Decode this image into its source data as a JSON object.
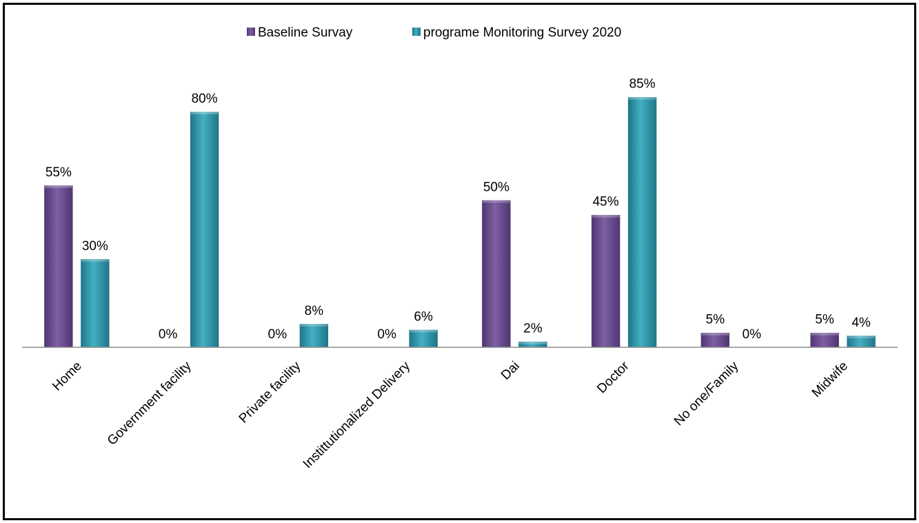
{
  "chart_data": {
    "type": "bar",
    "categories": [
      "Home",
      "Government facility",
      "Private facility",
      "Instittutionalized Delivery",
      "Dai",
      "Doctor",
      "No one/Family",
      "Midwife"
    ],
    "series": [
      {
        "name": "Baseline Survay",
        "values": [
          55,
          0,
          0,
          0,
          50,
          45,
          5,
          5
        ],
        "labels": [
          "55%",
          "0%",
          "0%",
          "0%",
          "50%",
          "45%",
          "5%",
          "5%"
        ],
        "color": "#6B4C8F"
      },
      {
        "name": "programe Monitoring Survey 2020",
        "values": [
          30,
          80,
          8,
          6,
          2,
          85,
          0,
          4
        ],
        "labels": [
          "30%",
          "80%",
          "8%",
          "6%",
          "2%",
          "85%",
          "0%",
          "4%"
        ],
        "color": "#2E94A8"
      }
    ],
    "ylim": [
      0,
      100
    ],
    "grid": false,
    "legend": "top-center",
    "title": "",
    "xlabel": "",
    "ylabel": ""
  }
}
